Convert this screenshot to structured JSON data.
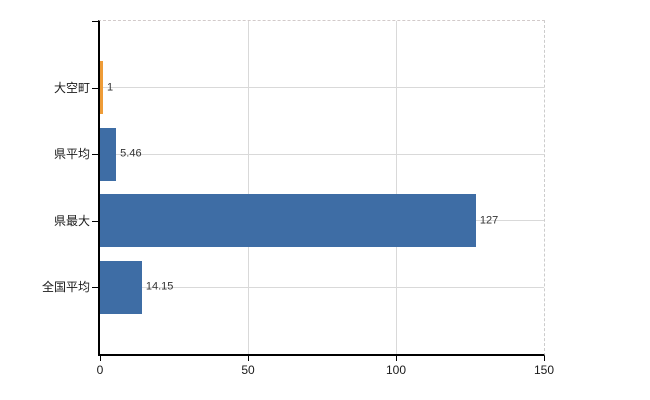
{
  "chart_data": {
    "type": "bar",
    "orientation": "horizontal",
    "title": "",
    "xlabel": "",
    "ylabel": "",
    "categories": [
      "大空町",
      "県平均",
      "県最大",
      "全国平均"
    ],
    "values": [
      1,
      5.46,
      127,
      14.15
    ],
    "value_labels": [
      "1",
      "5.46",
      "127",
      "14.15"
    ],
    "bar_colors": [
      "#EE9C38",
      "#3E6DA5",
      "#3E6DA5",
      "#3E6DA5"
    ],
    "highlight_category": "大空町",
    "highlight_color": "#EE9C38",
    "base_color": "#3E6DA5",
    "xlim": [
      0,
      150
    ],
    "x_tick_labels": [
      "0",
      "50",
      "100",
      "150"
    ],
    "x_tick_values": [
      0,
      50,
      100,
      150
    ],
    "grid": "on",
    "legend": "none"
  },
  "colors": {
    "background": "#ffffff",
    "axis": "#000000",
    "grid": "#d9d9d9",
    "dashed_border": "#d2caca",
    "text": "#1a1a1a",
    "value_text": "#333333"
  }
}
